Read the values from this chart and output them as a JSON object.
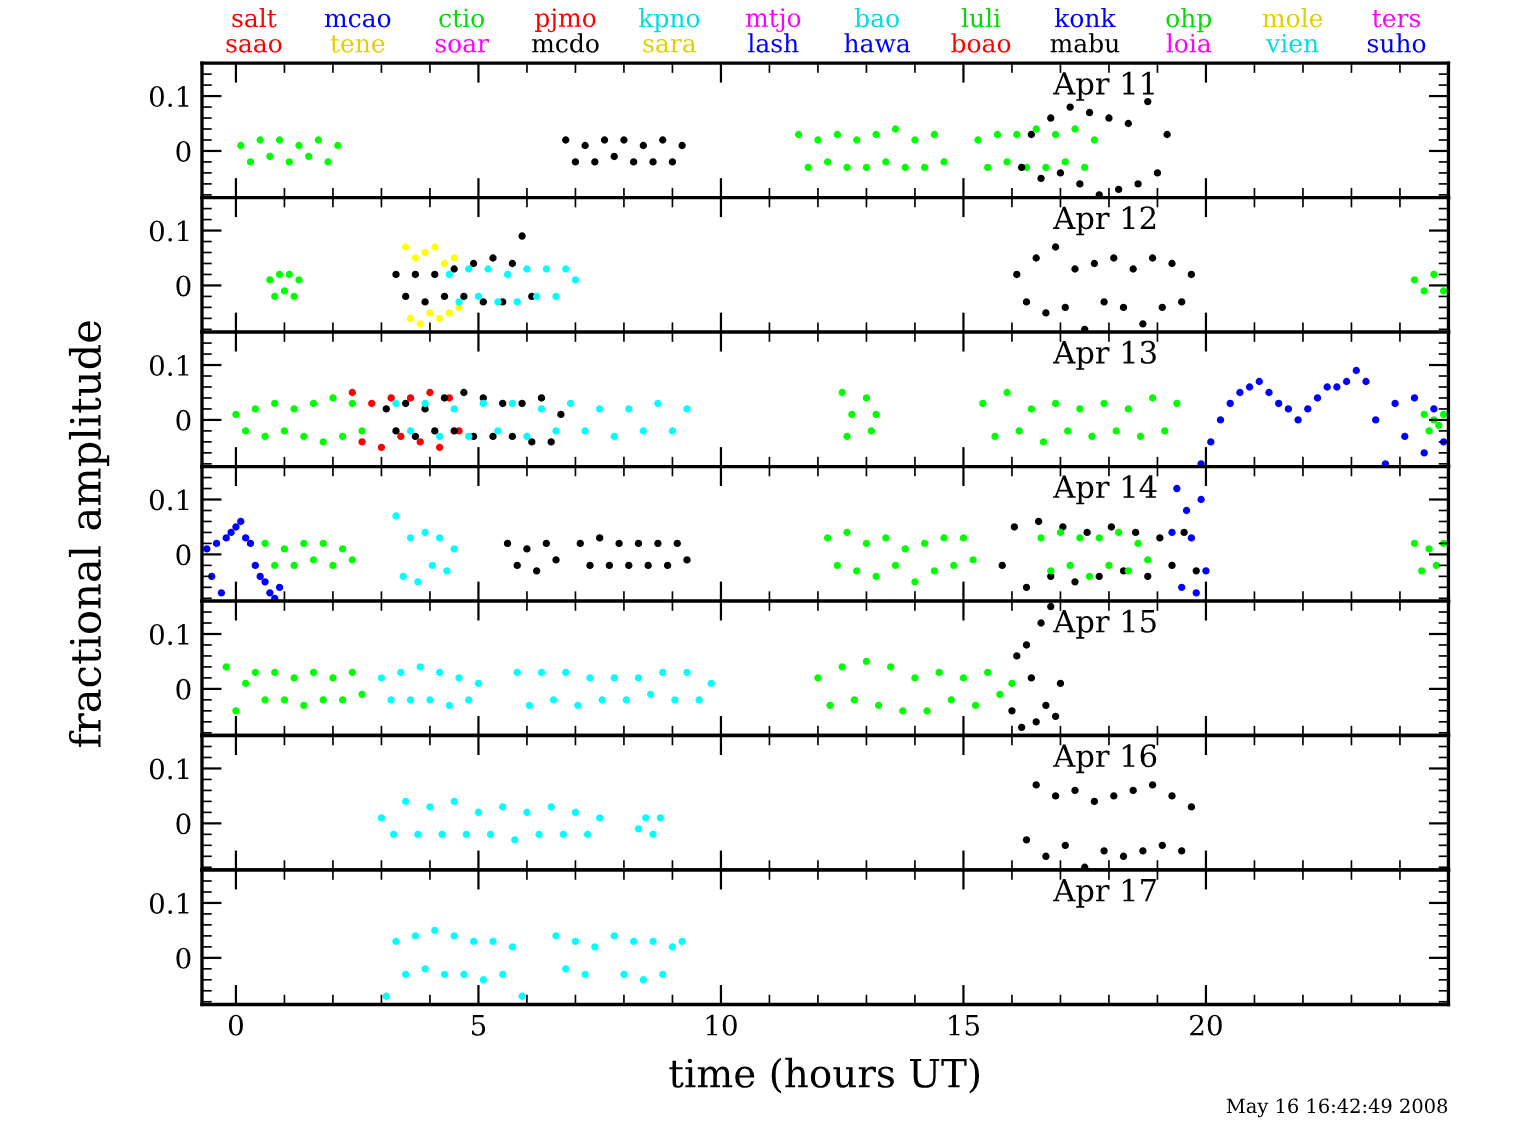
{
  "chart_data": [
    {
      "type": "scatter",
      "xlim": [
        -0.7,
        25
      ],
      "ylim": [
        -0.085,
        0.16
      ],
      "xticks": [
        0,
        5,
        10,
        15,
        20
      ],
      "yticks": [
        0,
        0.1
      ],
      "tick_labels": "y",
      "marker": "circle",
      "annotations": [
        "Apr 11"
      ],
      "series": [
        {
          "name": "salt",
          "color": "#ff0000"
        },
        {
          "name": "saao",
          "color": "#ff0000"
        },
        {
          "name": "mcao",
          "color": "#0000ff"
        },
        {
          "name": "tene",
          "color": "#e0d000"
        },
        {
          "name": "ctio",
          "color": "#00dd00"
        },
        {
          "name": "soar",
          "color": "#ff00ff"
        },
        {
          "name": "pjmo",
          "color": "#ff0000"
        },
        {
          "name": "mcdo",
          "color": "#000000"
        },
        {
          "name": "kpno",
          "color": "#00dddd"
        },
        {
          "name": "sara",
          "color": "#e0d000"
        },
        {
          "name": "mtjo",
          "color": "#ff00ff"
        },
        {
          "name": "lash",
          "color": "#0000ff"
        },
        {
          "name": "bao",
          "color": "#00dddd"
        },
        {
          "name": "hawa",
          "color": "#0000ff"
        },
        {
          "name": "luli",
          "color": "#00dd00"
        },
        {
          "name": "boao",
          "color": "#ff0000"
        },
        {
          "name": "konk",
          "color": "#0000ff"
        },
        {
          "name": "mabu",
          "color": "#000000"
        },
        {
          "name": "ohp",
          "color": "#00dd00"
        },
        {
          "name": "loia",
          "color": "#ff00ff"
        },
        {
          "name": "mole",
          "color": "#e0d000"
        },
        {
          "name": "vien",
          "color": "#00dddd"
        },
        {
          "name": "ters",
          "color": "#ff00ff"
        },
        {
          "name": "suho",
          "color": "#0000ff"
        },
        {
          "color": "#00ff00",
          "x": [
            0.1,
            0.3,
            0.5,
            0.7,
            0.9,
            1.1,
            1.3,
            1.5,
            1.7,
            1.9,
            2.1
          ],
          "values": [
            0.01,
            -0.02,
            0.02,
            -0.01,
            0.02,
            -0.02,
            0.01,
            -0.01,
            0.02,
            -0.02,
            0.01
          ]
        },
        {
          "color": "#000000",
          "x": [
            6.8,
            7.0,
            7.2,
            7.4,
            7.6,
            7.8,
            8.0,
            8.2,
            8.4,
            8.6,
            8.8,
            9.0,
            9.2
          ],
          "values": [
            0.02,
            -0.02,
            0.01,
            -0.02,
            0.02,
            -0.01,
            0.02,
            -0.02,
            0.01,
            -0.02,
            0.02,
            -0.02,
            0.01
          ]
        },
        {
          "color": "#00ff00",
          "x": [
            11.6,
            11.8,
            12.0,
            12.2,
            12.4,
            12.6,
            12.8,
            13.0,
            13.2,
            13.4,
            13.6,
            13.8,
            14.0,
            14.2,
            14.4,
            14.6
          ],
          "values": [
            0.03,
            -0.03,
            0.02,
            -0.02,
            0.03,
            -0.03,
            0.02,
            -0.03,
            0.03,
            -0.02,
            0.04,
            -0.03,
            0.02,
            -0.03,
            0.03,
            -0.02
          ]
        },
        {
          "color": "#00ff00",
          "x": [
            15.3,
            15.5,
            15.7,
            15.9,
            16.1,
            16.3,
            16.5,
            16.7,
            16.9,
            17.1,
            17.3,
            17.5,
            17.7
          ],
          "values": [
            0.02,
            -0.03,
            0.03,
            -0.02,
            0.03,
            -0.03,
            0.04,
            -0.03,
            0.03,
            -0.02,
            0.04,
            -0.03,
            0.02
          ]
        },
        {
          "color": "#000000",
          "x": [
            16.2,
            16.4,
            16.6,
            16.8,
            17.0,
            17.2,
            17.4,
            17.6,
            17.8,
            18.0,
            18.2,
            18.4,
            18.6,
            18.8,
            19.0,
            19.2
          ],
          "values": [
            -0.03,
            0.03,
            -0.05,
            0.06,
            -0.04,
            0.08,
            -0.06,
            0.07,
            -0.08,
            0.06,
            -0.07,
            0.05,
            -0.06,
            0.09,
            -0.04,
            0.03
          ]
        }
      ]
    },
    {
      "type": "scatter",
      "xlim": [
        -0.7,
        25
      ],
      "ylim": [
        -0.085,
        0.16
      ],
      "xticks": [
        0,
        5,
        10,
        15,
        20
      ],
      "yticks": [
        0,
        0.1
      ],
      "tick_labels": "y",
      "marker": "circle",
      "annotations": [
        "Apr 12"
      ],
      "series": [
        {
          "color": "#00ff00",
          "x": [
            0.7,
            0.8,
            0.9,
            1.0,
            1.1,
            1.2,
            1.3
          ],
          "values": [
            0.01,
            -0.02,
            0.02,
            -0.01,
            0.02,
            -0.02,
            0.01
          ]
        },
        {
          "color": "#ffff00",
          "x": [
            3.5,
            3.6,
            3.7,
            3.8,
            3.9,
            4.0,
            4.1,
            4.2,
            4.3,
            4.4,
            4.5,
            4.6
          ],
          "values": [
            0.07,
            -0.06,
            0.05,
            -0.07,
            0.06,
            -0.05,
            0.07,
            -0.06,
            0.04,
            -0.05,
            0.05,
            -0.04
          ]
        },
        {
          "color": "#000000",
          "x": [
            3.3,
            3.5,
            3.7,
            3.9,
            4.1,
            4.3,
            4.5,
            4.7,
            4.9,
            5.1,
            5.3,
            5.5,
            5.7,
            5.9,
            6.1
          ],
          "values": [
            0.02,
            -0.02,
            0.02,
            -0.03,
            0.02,
            -0.02,
            0.03,
            -0.02,
            0.04,
            -0.03,
            0.05,
            -0.03,
            0.04,
            0.09,
            -0.02
          ]
        },
        {
          "color": "#00ffff",
          "x": [
            4.4,
            4.6,
            4.8,
            5.0,
            5.2,
            5.4,
            5.6,
            5.8,
            6.0,
            6.2,
            6.4,
            6.6,
            6.8,
            7.0
          ],
          "values": [
            0.02,
            -0.03,
            0.03,
            -0.02,
            0.03,
            -0.03,
            0.02,
            -0.03,
            0.03,
            -0.02,
            0.03,
            -0.02,
            0.03,
            0.01
          ]
        },
        {
          "color": "#000000",
          "x": [
            16.1,
            16.3,
            16.5,
            16.7,
            16.9,
            17.1,
            17.3,
            17.5,
            17.7,
            17.9,
            18.1,
            18.3,
            18.5,
            18.7,
            18.9,
            19.1,
            19.3,
            19.5,
            19.7
          ],
          "values": [
            0.02,
            -0.03,
            0.05,
            -0.05,
            0.07,
            -0.04,
            0.03,
            -0.08,
            0.04,
            -0.03,
            0.05,
            -0.04,
            0.03,
            -0.07,
            0.05,
            -0.04,
            0.04,
            -0.03,
            0.02
          ]
        },
        {
          "color": "#00ff00",
          "x": [
            24.3,
            24.5,
            24.7,
            24.9
          ],
          "values": [
            0.01,
            -0.01,
            0.02,
            -0.01
          ]
        }
      ]
    },
    {
      "type": "scatter",
      "xlim": [
        -0.7,
        25
      ],
      "ylim": [
        -0.085,
        0.16
      ],
      "xticks": [
        0,
        5,
        10,
        15,
        20
      ],
      "yticks": [
        0,
        0.1
      ],
      "tick_labels": "y",
      "marker": "circle",
      "annotations": [
        "Apr 13"
      ],
      "series": [
        {
          "color": "#00ff00",
          "x": [
            0,
            0.2,
            0.4,
            0.6,
            0.8,
            1.0,
            1.2,
            1.4,
            1.6,
            1.8,
            2.0,
            2.2,
            2.4,
            2.6
          ],
          "values": [
            0.01,
            -0.02,
            0.02,
            -0.03,
            0.03,
            -0.02,
            0.02,
            -0.03,
            0.03,
            -0.04,
            0.04,
            -0.03,
            0.03,
            -0.02
          ]
        },
        {
          "color": "#ff0000",
          "x": [
            2.4,
            2.6,
            2.8,
            3.0,
            3.2,
            3.4,
            3.6,
            3.8,
            4.0,
            4.2,
            4.4,
            4.6
          ],
          "values": [
            0.05,
            -0.04,
            0.03,
            -0.05,
            0.04,
            -0.03,
            0.04,
            -0.04,
            0.05,
            -0.05,
            0.04,
            -0.02
          ]
        },
        {
          "color": "#000000",
          "x": [
            3.1,
            3.3,
            3.5,
            3.7,
            3.9,
            4.1,
            4.3,
            4.5,
            4.7,
            4.9,
            5.1,
            5.3,
            5.5,
            5.7,
            5.9,
            6.1,
            6.3,
            6.5,
            6.7
          ],
          "values": [
            0.02,
            -0.02,
            0.03,
            -0.03,
            0.02,
            -0.02,
            0.04,
            -0.02,
            0.05,
            -0.03,
            0.04,
            -0.03,
            0.03,
            -0.03,
            0.03,
            -0.04,
            0.04,
            -0.04,
            0.01
          ]
        },
        {
          "color": "#00ffff",
          "x": [
            3.3,
            3.6,
            3.9,
            4.2,
            4.5,
            4.8,
            5.1,
            5.4,
            5.7,
            6.0,
            6.3,
            6.6,
            6.9,
            7.2,
            7.5,
            7.8,
            8.1,
            8.4,
            8.7,
            9.0,
            9.3
          ],
          "values": [
            0.03,
            -0.02,
            0.03,
            -0.03,
            0.02,
            -0.03,
            0.03,
            -0.02,
            0.03,
            -0.03,
            0.02,
            -0.02,
            0.03,
            -0.02,
            0.02,
            -0.03,
            0.02,
            -0.02,
            0.03,
            -0.02,
            0.02
          ]
        },
        {
          "color": "#00ff00",
          "x": [
            12.5,
            12.6,
            12.7,
            13.0,
            13.1,
            13.2
          ],
          "values": [
            0.05,
            -0.03,
            0.01,
            0.04,
            -0.02,
            0.01
          ]
        },
        {
          "color": "#00ff00",
          "x": [
            15.4,
            15.65,
            15.9,
            16.15,
            16.4,
            16.65,
            16.9,
            17.15,
            17.4,
            17.65,
            17.9,
            18.15,
            18.4,
            18.65,
            18.9,
            19.15,
            19.4
          ],
          "values": [
            0.03,
            -0.03,
            0.05,
            -0.02,
            0.02,
            -0.04,
            0.03,
            -0.02,
            0.02,
            -0.03,
            0.03,
            -0.02,
            0.02,
            -0.03,
            0.04,
            -0.02,
            0.03
          ]
        },
        {
          "color": "#0000ff",
          "x": [
            19.9,
            20.1,
            20.3,
            20.5,
            20.7,
            20.9,
            21.1,
            21.3,
            21.5,
            21.7,
            21.9,
            22.1,
            22.3,
            22.5,
            22.7,
            22.9,
            23.1,
            23.3,
            23.5,
            23.7
          ],
          "values": [
            -0.08,
            -0.04,
            0.0,
            0.03,
            0.05,
            0.06,
            0.07,
            0.05,
            0.03,
            0.02,
            0.0,
            0.02,
            0.04,
            0.06,
            0.06,
            0.07,
            0.09,
            0.07,
            0.0,
            -0.08
          ]
        },
        {
          "color": "#0000ff",
          "x": [
            23.9,
            24.1,
            24.3,
            24.5,
            24.7,
            24.9
          ],
          "values": [
            0.03,
            -0.03,
            0.04,
            -0.06,
            0.02,
            -0.04
          ]
        },
        {
          "color": "#00ff00",
          "x": [
            24.5,
            24.6,
            24.7,
            24.8,
            24.9
          ],
          "values": [
            0.01,
            -0.02,
            0.0,
            -0.01,
            0.01
          ]
        }
      ]
    },
    {
      "type": "scatter",
      "xlim": [
        -0.7,
        25
      ],
      "ylim": [
        -0.085,
        0.16
      ],
      "xticks": [
        0,
        5,
        10,
        15,
        20
      ],
      "yticks": [
        0,
        0.1
      ],
      "tick_labels": "y",
      "marker": "circle",
      "ylabel": "fractional amplitude",
      "annotations": [
        "Apr 14"
      ],
      "series": [
        {
          "color": "#0000ff",
          "x": [
            -0.6,
            -0.5,
            -0.4,
            -0.3,
            -0.2,
            -0.1,
            0.0,
            0.1,
            0.2,
            0.3,
            0.4,
            0.5,
            0.6,
            0.7,
            0.8,
            0.9
          ],
          "values": [
            0.01,
            -0.04,
            0.02,
            -0.07,
            0.03,
            0.04,
            0.05,
            0.06,
            0.03,
            0.02,
            -0.02,
            -0.04,
            -0.05,
            -0.07,
            -0.08,
            -0.06
          ]
        },
        {
          "color": "#00ff00",
          "x": [
            0.6,
            0.8,
            1.0,
            1.2,
            1.4,
            1.6,
            1.8,
            2.0,
            2.2,
            2.4
          ],
          "values": [
            0.02,
            -0.02,
            0.01,
            -0.02,
            0.02,
            -0.01,
            0.02,
            -0.02,
            0.01,
            -0.01
          ]
        },
        {
          "color": "#00ffff",
          "x": [
            3.3,
            3.45,
            3.6,
            3.75,
            3.9,
            4.05,
            4.2,
            4.35,
            4.5
          ],
          "values": [
            0.07,
            -0.04,
            0.03,
            -0.05,
            0.04,
            -0.02,
            0.03,
            -0.03,
            0.01
          ]
        },
        {
          "color": "#000000",
          "x": [
            5.6,
            5.8,
            6.0,
            6.2,
            6.4,
            6.6
          ],
          "values": [
            0.02,
            -0.02,
            0.01,
            -0.03,
            0.02,
            -0.01
          ]
        },
        {
          "color": "#000000",
          "x": [
            7.1,
            7.3,
            7.5,
            7.7,
            7.9,
            8.1,
            8.3,
            8.5,
            8.7,
            8.9,
            9.1,
            9.3
          ],
          "values": [
            0.02,
            -0.02,
            0.03,
            -0.02,
            0.02,
            -0.02,
            0.02,
            -0.02,
            0.02,
            -0.02,
            0.02,
            -0.01
          ]
        },
        {
          "color": "#00ff00",
          "x": [
            12.2,
            12.4,
            12.6,
            12.8,
            13.0,
            13.2,
            13.4,
            13.6,
            13.8,
            14.0,
            14.2,
            14.4,
            14.6,
            14.8,
            15.0,
            15.2
          ],
          "values": [
            0.03,
            -0.02,
            0.04,
            -0.03,
            0.02,
            -0.04,
            0.03,
            -0.02,
            0.01,
            -0.05,
            0.02,
            -0.03,
            0.03,
            -0.02,
            0.03,
            -0.01
          ]
        },
        {
          "color": "#000000",
          "x": [
            15.8,
            16.05,
            16.3,
            16.55,
            16.8,
            17.05,
            17.3,
            17.55,
            17.8,
            18.05,
            18.3,
            18.55,
            18.8,
            19.05,
            19.3,
            19.55,
            19.8
          ],
          "values": [
            -0.02,
            0.05,
            -0.06,
            0.06,
            -0.04,
            0.05,
            -0.05,
            0.04,
            -0.04,
            0.05,
            -0.03,
            0.04,
            -0.04,
            0.03,
            -0.02,
            0.04,
            -0.03
          ]
        },
        {
          "color": "#00ff00",
          "x": [
            16.6,
            16.8,
            17.0,
            17.2,
            17.4,
            17.6,
            17.8,
            18.0,
            18.2,
            18.4,
            18.6,
            18.8
          ],
          "values": [
            0.03,
            -0.03,
            0.04,
            -0.02,
            0.03,
            -0.04,
            0.03,
            -0.02,
            0.04,
            -0.03,
            0.02,
            -0.01
          ]
        },
        {
          "color": "#0000ff",
          "x": [
            19.3,
            19.4,
            19.5,
            19.6,
            19.7,
            19.8,
            19.9,
            20.0
          ],
          "values": [
            0.04,
            0.12,
            -0.06,
            0.08,
            0.03,
            -0.07,
            0.1,
            -0.03
          ]
        },
        {
          "color": "#00ff00",
          "x": [
            24.3,
            24.45,
            24.6,
            24.75,
            24.9
          ],
          "values": [
            0.02,
            -0.03,
            0.01,
            -0.02,
            0.02
          ]
        }
      ]
    },
    {
      "type": "scatter",
      "xlim": [
        -0.7,
        25
      ],
      "ylim": [
        -0.085,
        0.16
      ],
      "xticks": [
        0,
        5,
        10,
        15,
        20
      ],
      "yticks": [
        0,
        0.1
      ],
      "tick_labels": "y",
      "marker": "circle",
      "annotations": [
        "Apr 15"
      ],
      "series": [
        {
          "color": "#00ff00",
          "x": [
            -0.2,
            0.0,
            0.2,
            0.4,
            0.6,
            0.8,
            1.0,
            1.2,
            1.4,
            1.6,
            1.8,
            2.0,
            2.2,
            2.4,
            2.6
          ],
          "values": [
            0.04,
            -0.04,
            0.01,
            0.03,
            -0.02,
            0.03,
            -0.02,
            0.02,
            -0.03,
            0.03,
            -0.02,
            0.02,
            -0.02,
            0.03,
            -0.01
          ]
        },
        {
          "color": "#00ffff",
          "x": [
            3.0,
            3.2,
            3.4,
            3.6,
            3.8,
            4.0,
            4.2,
            4.4,
            4.6,
            4.8,
            5.0
          ],
          "values": [
            0.02,
            -0.02,
            0.03,
            -0.02,
            0.04,
            -0.02,
            0.03,
            -0.03,
            0.02,
            -0.02,
            0.01
          ]
        },
        {
          "color": "#00ffff",
          "x": [
            5.8,
            6.05,
            6.3,
            6.55,
            6.8,
            7.05,
            7.3,
            7.55,
            7.8,
            8.05,
            8.3,
            8.55,
            8.8,
            9.05,
            9.3,
            9.55,
            9.8
          ],
          "values": [
            0.03,
            -0.03,
            0.03,
            -0.02,
            0.03,
            -0.03,
            0.02,
            -0.02,
            0.02,
            -0.02,
            0.02,
            -0.01,
            0.03,
            -0.02,
            0.03,
            -0.02,
            0.01
          ]
        },
        {
          "color": "#00ff00",
          "x": [
            12.0,
            12.25,
            12.5,
            12.75,
            13.0,
            13.25,
            13.5,
            13.75,
            14.0,
            14.25,
            14.5,
            14.75,
            15.0,
            15.25,
            15.5,
            15.75,
            16.0
          ],
          "values": [
            0.02,
            -0.03,
            0.04,
            -0.02,
            0.05,
            -0.03,
            0.04,
            -0.04,
            0.02,
            -0.04,
            0.03,
            -0.02,
            0.02,
            -0.03,
            0.03,
            -0.01,
            0.01
          ]
        },
        {
          "color": "#000000",
          "x": [
            16.0,
            16.1,
            16.2,
            16.3,
            16.4,
            16.5,
            16.6,
            16.7,
            16.8,
            16.9,
            17.0
          ],
          "values": [
            -0.04,
            0.06,
            -0.07,
            0.08,
            0.02,
            -0.06,
            0.12,
            -0.03,
            0.15,
            -0.05,
            0.01
          ]
        }
      ]
    },
    {
      "type": "scatter",
      "xlim": [
        -0.7,
        25
      ],
      "ylim": [
        -0.085,
        0.16
      ],
      "xticks": [
        0,
        5,
        10,
        15,
        20
      ],
      "yticks": [
        0,
        0.1
      ],
      "tick_labels": "y",
      "marker": "circle",
      "annotations": [
        "Apr 16"
      ],
      "series": [
        {
          "color": "#00ffff",
          "x": [
            3.0,
            3.25,
            3.5,
            3.75,
            4.0,
            4.25,
            4.5,
            4.75,
            5.0,
            5.25,
            5.5,
            5.75,
            6.0,
            6.25,
            6.5,
            6.75,
            7.0,
            7.25,
            7.5
          ],
          "values": [
            0.01,
            -0.02,
            0.04,
            -0.02,
            0.03,
            -0.02,
            0.04,
            -0.02,
            0.02,
            -0.02,
            0.03,
            -0.03,
            0.02,
            -0.02,
            0.03,
            -0.02,
            0.02,
            -0.02,
            0.01
          ]
        },
        {
          "color": "#00ffff",
          "x": [
            8.3,
            8.45,
            8.6,
            8.75
          ],
          "values": [
            -0.01,
            0.01,
            -0.02,
            0.01
          ]
        },
        {
          "color": "#000000",
          "x": [
            16.3,
            16.5,
            16.7,
            16.9,
            17.1,
            17.3,
            17.5,
            17.7,
            17.9,
            18.1,
            18.3,
            18.5,
            18.7,
            18.9,
            19.1,
            19.3,
            19.5,
            19.7
          ],
          "values": [
            -0.03,
            0.07,
            -0.06,
            0.05,
            -0.04,
            0.06,
            -0.08,
            0.04,
            -0.05,
            0.05,
            -0.06,
            0.06,
            -0.05,
            0.07,
            -0.04,
            0.05,
            -0.05,
            0.03
          ]
        }
      ]
    },
    {
      "type": "scatter",
      "xlim": [
        -0.7,
        25
      ],
      "ylim": [
        -0.085,
        0.16
      ],
      "xticks": [
        0,
        5,
        10,
        15,
        20
      ],
      "yticks": [
        0,
        0.1
      ],
      "marker": "circle",
      "xlabel": "time (hours UT)",
      "annotations": [
        "Apr 17",
        "May 16 16:42:49 2008"
      ],
      "series": [
        {
          "color": "#00ffff",
          "x": [
            3.1,
            3.3,
            3.5,
            3.7,
            3.9,
            4.1,
            4.3,
            4.5,
            4.7,
            4.9,
            5.1,
            5.3,
            5.5,
            5.7,
            5.9
          ],
          "values": [
            -0.07,
            0.03,
            -0.03,
            0.04,
            -0.02,
            0.05,
            -0.03,
            0.04,
            -0.03,
            0.03,
            -0.04,
            0.03,
            -0.03,
            0.02,
            -0.07
          ]
        },
        {
          "color": "#00ffff",
          "x": [
            6.6,
            6.8,
            7.0,
            7.2,
            7.4
          ],
          "values": [
            0.04,
            -0.02,
            0.03,
            -0.03,
            0.02
          ]
        },
        {
          "color": "#00ffff",
          "x": [
            7.8,
            8.0,
            8.2,
            8.4,
            8.6,
            8.8,
            9.0,
            9.2
          ],
          "values": [
            0.04,
            -0.03,
            0.03,
            -0.04,
            0.03,
            -0.03,
            0.02,
            0.03
          ]
        }
      ]
    }
  ]
}
